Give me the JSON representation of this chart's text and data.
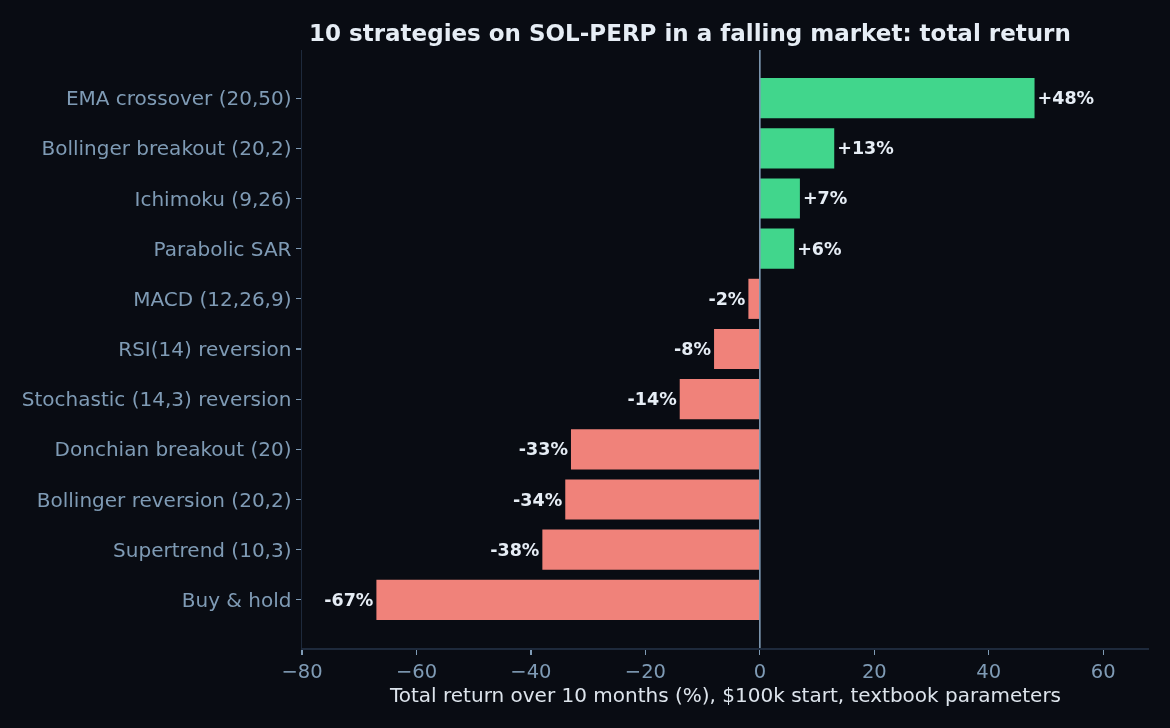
{
  "chart_data": {
    "type": "bar",
    "orientation": "horizontal",
    "title": "10 strategies on SOL-PERP in a falling market: total return",
    "xlabel": "Total return over 10 months (%), $100k start, textbook parameters",
    "categories": [
      "EMA crossover (20,50)",
      "Bollinger breakout (20,2)",
      "Ichimoku (9,26)",
      "Parabolic SAR",
      "MACD (12,26,9)",
      "RSI(14) reversion",
      "Stochastic (14,3) reversion",
      "Donchian breakout (20)",
      "Bollinger reversion (20,2)",
      "Supertrend (10,3)",
      "Buy & hold"
    ],
    "values": [
      48,
      13,
      7,
      6,
      -2,
      -8,
      -14,
      -33,
      -34,
      -38,
      -67
    ],
    "colors": [
      "#41d68c",
      "#41d68c",
      "#41d68c",
      "#41d68c",
      "#f0827a",
      "#f0827a",
      "#f0827a",
      "#f0827a",
      "#f0827a",
      "#f0827a",
      "#f0827a"
    ],
    "value_labels": [
      "+48%",
      "+13%",
      "+7%",
      "+6%",
      "-2%",
      "-8%",
      "-14%",
      "-33%",
      "-34%",
      "-38%",
      "-67%"
    ],
    "xlim": [
      -80,
      68
    ],
    "xticks": [
      -80,
      -60,
      -40,
      -20,
      0,
      20,
      40,
      60
    ],
    "ref_lines": [
      {
        "axis": "x",
        "value": 0,
        "color": "#7f9bb5"
      }
    ]
  }
}
